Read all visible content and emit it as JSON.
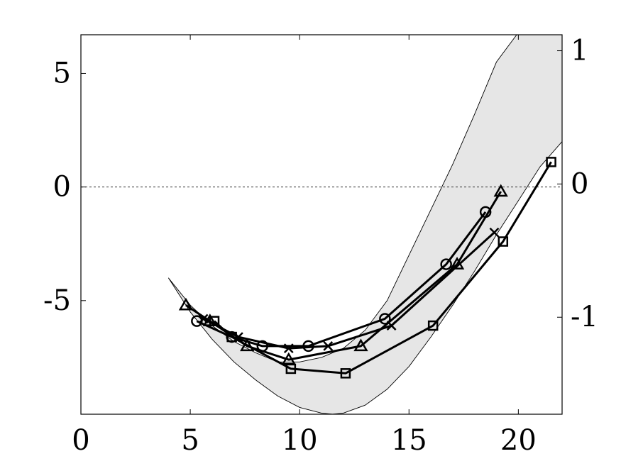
{
  "chart_data": {
    "type": "line",
    "title": "",
    "xlabel": "",
    "ylabel": "",
    "xlim": [
      0,
      22
    ],
    "ylim": [
      -10,
      6.7
    ],
    "y2lim": [
      -1.728,
      1.12
    ],
    "xticks": [
      "0",
      "5",
      "10",
      "15",
      "20"
    ],
    "yticks": [
      "5",
      "0",
      "-5"
    ],
    "y2ticks": [
      "1",
      "0",
      "-1"
    ],
    "grid": false,
    "reference_line": {
      "y": 0,
      "style": "dashed"
    },
    "band": {
      "description": "shaded gray region",
      "color": "#e6e6e6",
      "upper": {
        "x": [
          4.0,
          5.0,
          6.0,
          7.0,
          8.0,
          9.0,
          10.0,
          11.0,
          12.0,
          13.0,
          14.0,
          15.0,
          16.0,
          17.0,
          18.0,
          19.0,
          20.0,
          21.0,
          22.0
        ],
        "y": [
          -4.0,
          -5.2,
          -6.1,
          -6.8,
          -7.3,
          -7.7,
          -7.7,
          -7.5,
          -7.1,
          -6.3,
          -5.0,
          -3.0,
          -1.0,
          1.0,
          3.2,
          5.5,
          6.8,
          7.5,
          8.0
        ]
      },
      "lower": {
        "x": [
          4.0,
          5.0,
          6.0,
          7.0,
          8.0,
          9.0,
          10.0,
          11.0,
          11.5,
          12.0,
          13.0,
          14.0,
          15.0,
          16.0,
          17.0,
          18.0,
          19.0,
          20.0,
          21.0,
          22.0
        ],
        "y": [
          -4.0,
          -5.5,
          -6.7,
          -7.7,
          -8.5,
          -9.2,
          -9.7,
          -9.95,
          -10.0,
          -9.95,
          -9.6,
          -8.9,
          -7.9,
          -6.6,
          -5.2,
          -3.7,
          -2.1,
          -0.6,
          0.9,
          2.0
        ]
      }
    },
    "series": [
      {
        "marker": "triangle",
        "x": [
          4.8,
          5.9,
          7.6,
          9.5,
          12.8,
          17.2,
          19.2
        ],
        "y": [
          -5.2,
          -5.9,
          -7.0,
          -7.6,
          -7.0,
          -3.4,
          -0.2
        ]
      },
      {
        "marker": "circle",
        "x": [
          5.3,
          6.9,
          8.3,
          10.4,
          13.9,
          16.7,
          18.5
        ],
        "y": [
          -5.9,
          -6.6,
          -7.0,
          -7.0,
          -5.8,
          -3.4,
          -1.1
        ]
      },
      {
        "marker": "x",
        "x": [
          5.6,
          7.2,
          9.5,
          11.3,
          14.2,
          18.9
        ],
        "y": [
          -5.8,
          -6.6,
          -7.1,
          -7.0,
          -6.1,
          -2.0
        ]
      },
      {
        "marker": "square",
        "x": [
          6.1,
          6.9,
          9.6,
          12.1,
          16.1,
          19.3,
          21.5
        ],
        "y": [
          -5.9,
          -6.6,
          -8.0,
          -8.2,
          -6.1,
          -2.4,
          1.1
        ]
      }
    ]
  }
}
